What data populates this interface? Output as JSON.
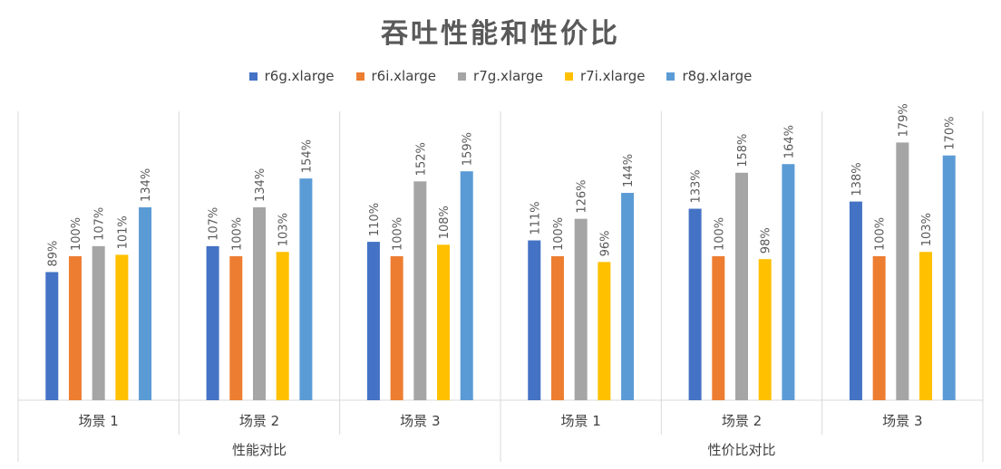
{
  "chart_data": {
    "type": "bar",
    "title": "吞吐性能和性价比",
    "groups": [
      {
        "label": "性能对比",
        "categories": [
          "场景 1",
          "场景 2",
          "场景 3"
        ]
      },
      {
        "label": "性价比对比",
        "categories": [
          "场景 1",
          "场景 2",
          "场景 3"
        ]
      }
    ],
    "categories": [
      "场景 1",
      "场景 2",
      "场景 3",
      "场景 1",
      "场景 2",
      "场景 3"
    ],
    "series": [
      {
        "name": "r6g.xlarge",
        "color": "#4472C4",
        "values": [
          89,
          107,
          110,
          111,
          133,
          138
        ]
      },
      {
        "name": "r6i.xlarge",
        "color": "#ED7D31",
        "values": [
          100,
          100,
          100,
          100,
          100,
          100
        ]
      },
      {
        "name": "r7g.xlarge",
        "color": "#A5A5A5",
        "values": [
          107,
          134,
          152,
          126,
          158,
          179
        ]
      },
      {
        "name": "r7i.xlarge",
        "color": "#FFC000",
        "values": [
          101,
          103,
          108,
          96,
          98,
          103
        ]
      },
      {
        "name": "r8g.xlarge",
        "color": "#5B9BD5",
        "values": [
          134,
          154,
          159,
          144,
          164,
          170
        ]
      }
    ],
    "value_format": "percent",
    "ylim": [
      0,
      180
    ],
    "legend": "top",
    "grid": false
  }
}
